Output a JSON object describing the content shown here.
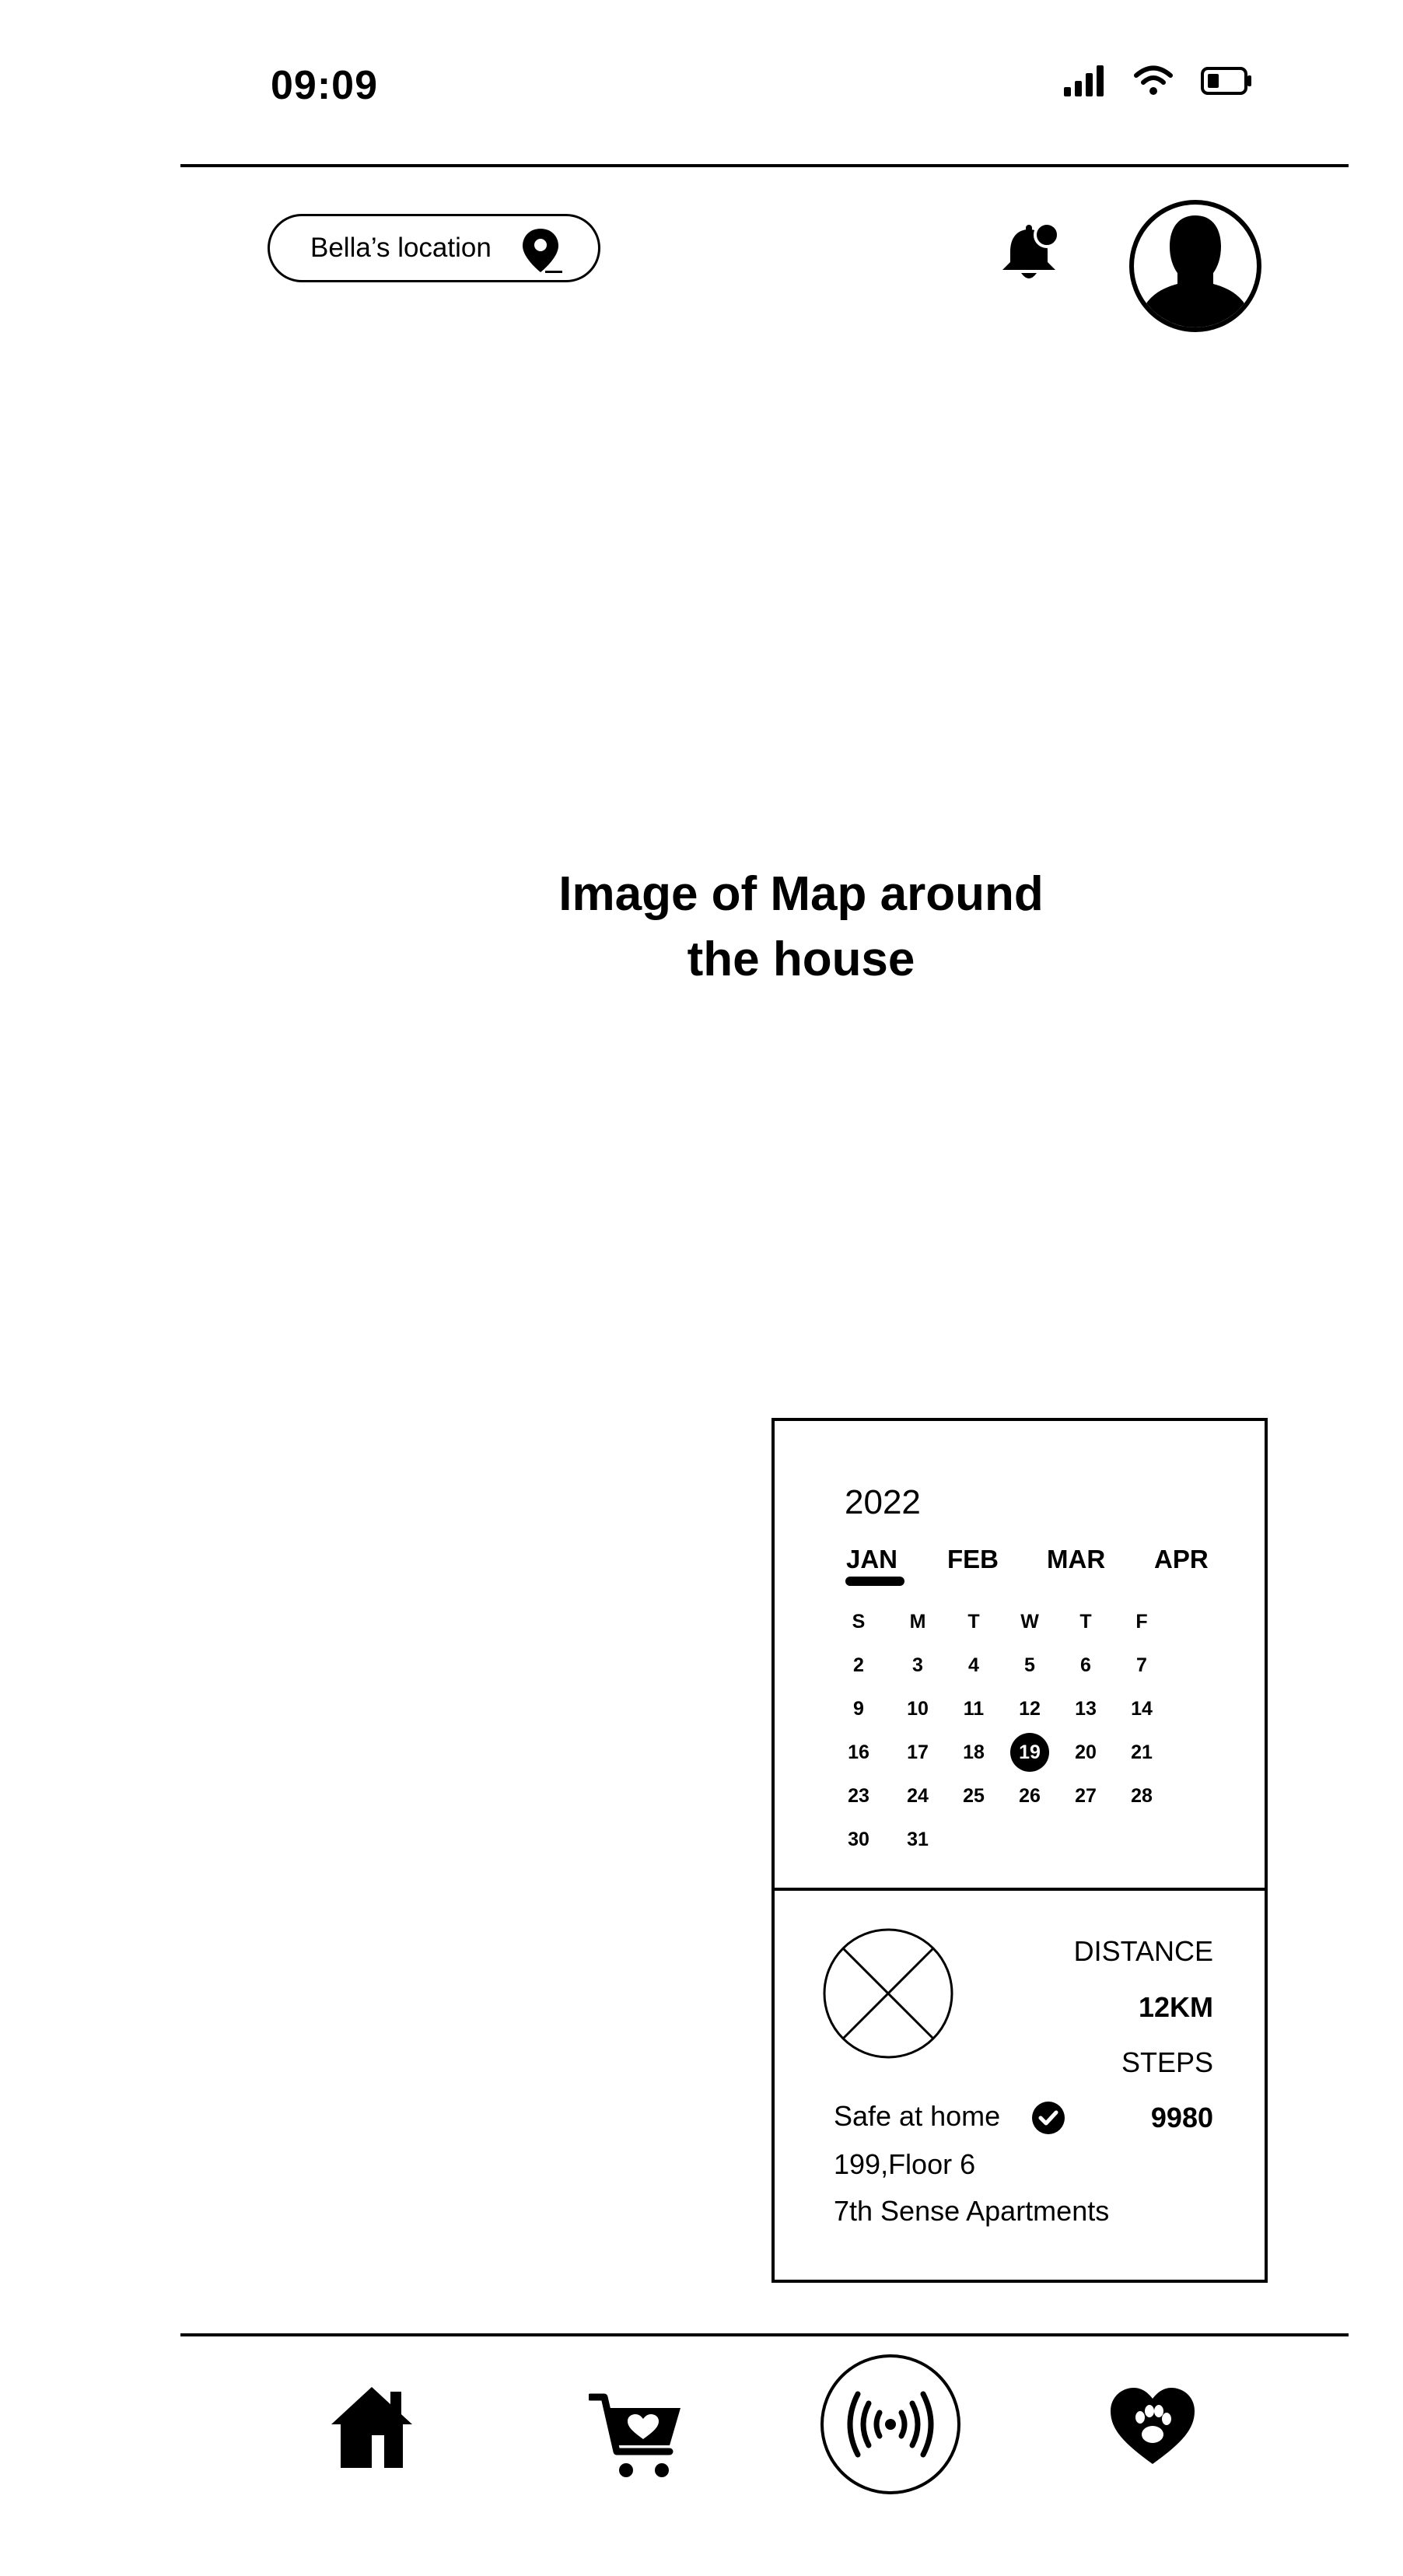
{
  "status_bar": {
    "time": "09:09",
    "icons": [
      "signal-icon",
      "wifi-icon",
      "battery-icon"
    ]
  },
  "header": {
    "location_label": "Bella’s location",
    "icons": [
      "map-pin-icon",
      "notification-bell-icon",
      "profile-avatar-icon"
    ]
  },
  "map": {
    "caption_line1": "Image of Map around",
    "caption_line2": "the house"
  },
  "calendar": {
    "year": "2022",
    "months": [
      "JAN",
      "FEB",
      "MAR",
      "APR"
    ],
    "selected_month": "JAN",
    "weekdays": [
      "S",
      "M",
      "T",
      "W",
      "T",
      "F"
    ],
    "weeks": [
      [
        "2",
        "3",
        "4",
        "5",
        "6",
        "7"
      ],
      [
        "9",
        "10",
        "11",
        "12",
        "13",
        "14"
      ],
      [
        "16",
        "17",
        "18",
        "19",
        "20",
        "21"
      ],
      [
        "23",
        "24",
        "25",
        "26",
        "27",
        "28"
      ],
      [
        "30",
        "31"
      ]
    ],
    "selected_day": "19"
  },
  "stats": {
    "distance_label": "DISTANCE",
    "distance_value": "12KM",
    "steps_label": "STEPS",
    "steps_value": "9980",
    "status": "Safe at home",
    "address_line1": "199,Floor 6",
    "address_line2": "7th Sense Apartments"
  },
  "bottom_nav": {
    "items": [
      "home-icon",
      "cart-heart-icon",
      "live-tracking-icon",
      "pet-heart-icon"
    ]
  },
  "colors": {
    "foreground": "#000000",
    "background": "#ffffff"
  }
}
